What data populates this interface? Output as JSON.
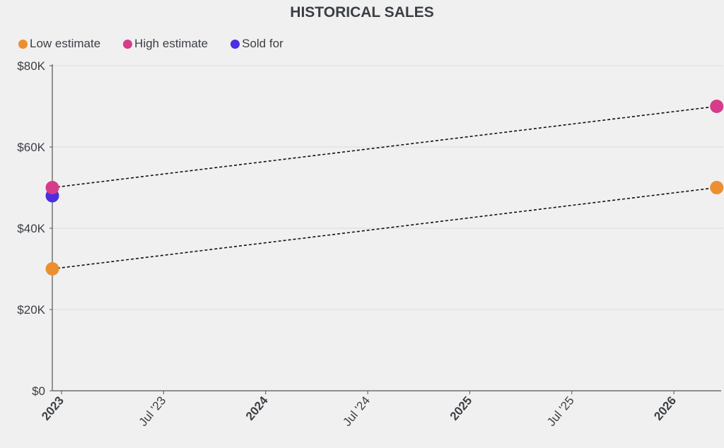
{
  "chart_data": {
    "type": "line",
    "title": "HISTORICAL SALES",
    "legend_position": "top-left",
    "series": [
      {
        "name": "Low estimate",
        "color": "#ec8f30",
        "points": [
          {
            "x": 2022.955,
            "y": 30000
          },
          {
            "x": 2026.21,
            "y": 50000
          }
        ],
        "dashed_line": true
      },
      {
        "name": "High estimate",
        "color": "#d63c8a",
        "points": [
          {
            "x": 2022.955,
            "y": 50000
          },
          {
            "x": 2026.21,
            "y": 70000
          }
        ],
        "dashed_line": true
      },
      {
        "name": "Sold for",
        "color": "#4a2ee0",
        "points": [
          {
            "x": 2022.955,
            "y": 48000
          }
        ],
        "dashed_line": false
      }
    ],
    "y_ticks": [
      {
        "v": 0,
        "label": "$0"
      },
      {
        "v": 20000,
        "label": "$20K"
      },
      {
        "v": 40000,
        "label": "$40K"
      },
      {
        "v": 60000,
        "label": "$60K"
      },
      {
        "v": 80000,
        "label": "$80K"
      }
    ],
    "x_ticks": [
      {
        "v": 2023,
        "label": "2023",
        "major": true
      },
      {
        "v": 2023.5,
        "label": "Jul '23",
        "major": false
      },
      {
        "v": 2024,
        "label": "2024",
        "major": true
      },
      {
        "v": 2024.5,
        "label": "Jul '24",
        "major": false
      },
      {
        "v": 2025,
        "label": "2025",
        "major": true
      },
      {
        "v": 2025.5,
        "label": "Jul '25",
        "major": false
      },
      {
        "v": 2026,
        "label": "2026",
        "major": true
      }
    ],
    "ylim": [
      0,
      80000
    ],
    "xlim": [
      2022.955,
      2026.21
    ],
    "grid": true
  }
}
